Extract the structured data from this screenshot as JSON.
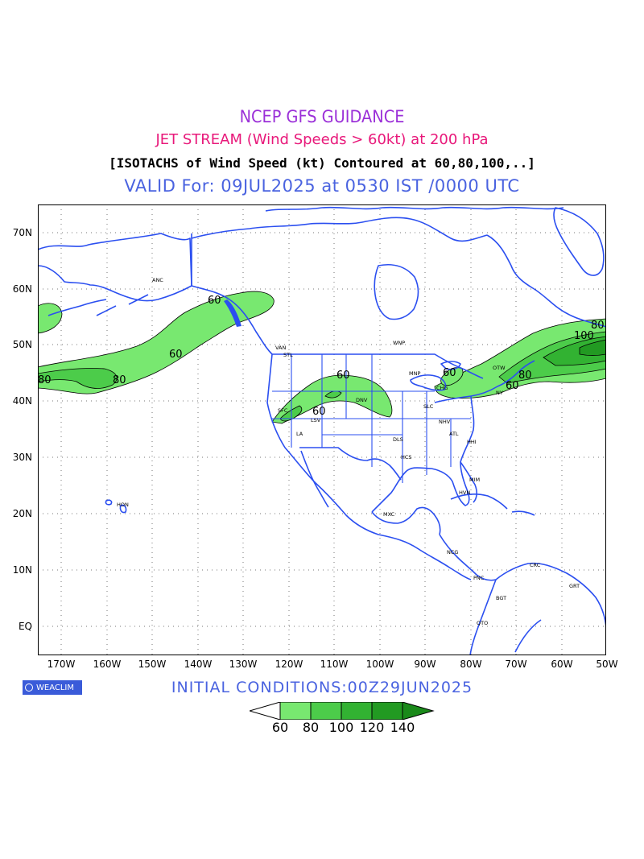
{
  "titles": {
    "line1": "NCEP GFS GUIDANCE",
    "line2": "JET STREAM (Wind Speeds > 60kt) at 200 hPa",
    "line3": "[ISOTACHS of Wind Speed (kt) Contoured at 60,80,100,..]",
    "line4": "VALID For: 09JUL2025 at 0530 IST /0000 UTC"
  },
  "colors": {
    "line1": "#9b30d8",
    "line2": "#e8187a",
    "line3": "#000000",
    "line4": "#4a63e0",
    "coast": "#2b4ff0",
    "jet60": "#78e870",
    "jet80": "#4ccc4a",
    "jet100": "#32b232",
    "jet120": "#229a22",
    "jet140": "#1a8a1a"
  },
  "lat_labels": [
    "70N",
    "60N",
    "50N",
    "40N",
    "30N",
    "20N",
    "10N",
    "EQ"
  ],
  "lon_labels": [
    "170W",
    "160W",
    "150W",
    "140W",
    "130W",
    "120W",
    "110W",
    "100W",
    "90W",
    "80W",
    "70W",
    "60W",
    "50W"
  ],
  "stations": {
    "anc": "ANC",
    "van": "VAN",
    "stl": "STL",
    "sfc": "SFC",
    "la": "LA",
    "lsv": "LSV",
    "dnv": "DNV",
    "slc": "SLC",
    "mnp": "MNP",
    "wnp": "WNP",
    "chg": "CHG",
    "dls": "DLS",
    "hcs": "HCS",
    "atl": "ATL",
    "nhv": "NHV",
    "hhi": "HHI",
    "mim": "MIM",
    "hvn": "HVN",
    "mxc": "MXC",
    "ncg": "NCG",
    "pnc": "PNC",
    "crc": "CRC",
    "bgt": "BGT",
    "grt": "GRT",
    "qto": "QTO",
    "hon": "HON",
    "otw": "OTW",
    "ny": "NY"
  },
  "contour_labels": {
    "pac60a": "60",
    "pac60b": "60",
    "pac80a": "80",
    "pac80b": "80",
    "us60a": "60",
    "us60b": "60",
    "ne60a": "60",
    "ne60b": "60",
    "ne80a": "80",
    "ne80b": "80",
    "ne100": "100"
  },
  "footer": {
    "initial": "INITIAL CONDITIONS:00Z29JUN2025",
    "logo": "WEACLIM"
  },
  "colorbar": {
    "labels": [
      "60",
      "80",
      "100",
      "120",
      "140"
    ]
  }
}
